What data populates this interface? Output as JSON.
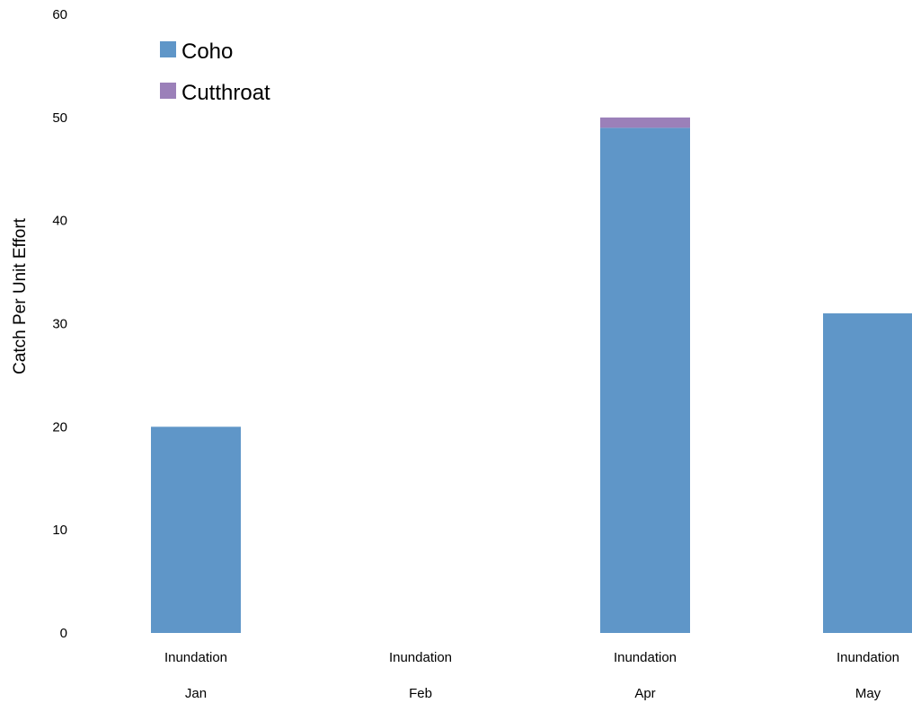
{
  "chart_data": {
    "type": "bar",
    "stacked": true,
    "categories": [
      "Jan",
      "Feb",
      "Apr",
      "May"
    ],
    "category_sublabels": [
      "Inundation",
      "Inundation",
      "Inundation",
      "Inundation"
    ],
    "series": [
      {
        "name": "Coho",
        "color": "#5f96c8",
        "values": [
          20,
          0,
          49,
          31
        ]
      },
      {
        "name": "Cutthroat",
        "color": "#9b80b9",
        "values": [
          0,
          0,
          1,
          0
        ]
      }
    ],
    "ylabel": "Catch Per Unit Effort",
    "xlabel": "",
    "ylim": [
      0,
      60
    ],
    "yticks": [
      0,
      10,
      20,
      30,
      40,
      50,
      60
    ],
    "legend_position": "top-left",
    "grid": false
  }
}
